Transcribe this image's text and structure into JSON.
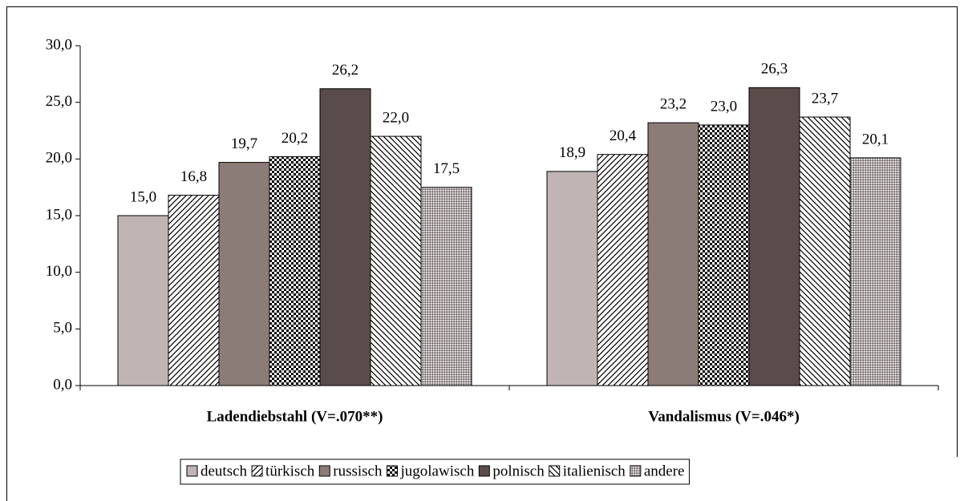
{
  "chart_data": {
    "type": "bar",
    "categories": [
      "Ladendiebstahl (V=.070**)",
      "Vandalismus (V=.046*)"
    ],
    "series": [
      {
        "name": "deutsch",
        "color": "#c0b4b4",
        "hatch": "solid",
        "values": [
          15.0,
          18.9
        ],
        "value_labels": [
          "15,0",
          "18,9"
        ]
      },
      {
        "name": "türkisch",
        "color": "#ffffff",
        "hatch": "diagonal",
        "values": [
          16.8,
          20.4
        ],
        "value_labels": [
          "16,8",
          "20,4"
        ]
      },
      {
        "name": "russisch",
        "color": "#8c7c78",
        "hatch": "solid",
        "values": [
          19.7,
          23.2
        ],
        "value_labels": [
          "19,7",
          "23,2"
        ]
      },
      {
        "name": "jugolawisch",
        "color": "#ffffff",
        "hatch": "checker",
        "values": [
          20.2,
          23.0
        ],
        "value_labels": [
          "20,2",
          "23,0"
        ]
      },
      {
        "name": "polnisch",
        "color": "#5a4c4a",
        "hatch": "solid",
        "values": [
          26.2,
          26.3
        ],
        "value_labels": [
          "26,2",
          "26,3"
        ]
      },
      {
        "name": "italienisch",
        "color": "#ffffff",
        "hatch": "backdiagonal",
        "values": [
          22.0,
          23.7
        ],
        "value_labels": [
          "22,0",
          "23,7"
        ]
      },
      {
        "name": "andere",
        "color": "#a8a0a0",
        "hatch": "dots",
        "values": [
          17.5,
          20.1
        ],
        "value_labels": [
          "17,5",
          "20,1"
        ]
      }
    ],
    "ylim": [
      0,
      30
    ],
    "yticks": [
      {
        "value": 0,
        "label": "0,0"
      },
      {
        "value": 5,
        "label": "5,0"
      },
      {
        "value": 10,
        "label": "10,0"
      },
      {
        "value": 15,
        "label": "15,0"
      },
      {
        "value": 20,
        "label": "20,0"
      },
      {
        "value": 25,
        "label": "25,0"
      },
      {
        "value": 30,
        "label": "30,0"
      }
    ],
    "legend": "bottom"
  }
}
